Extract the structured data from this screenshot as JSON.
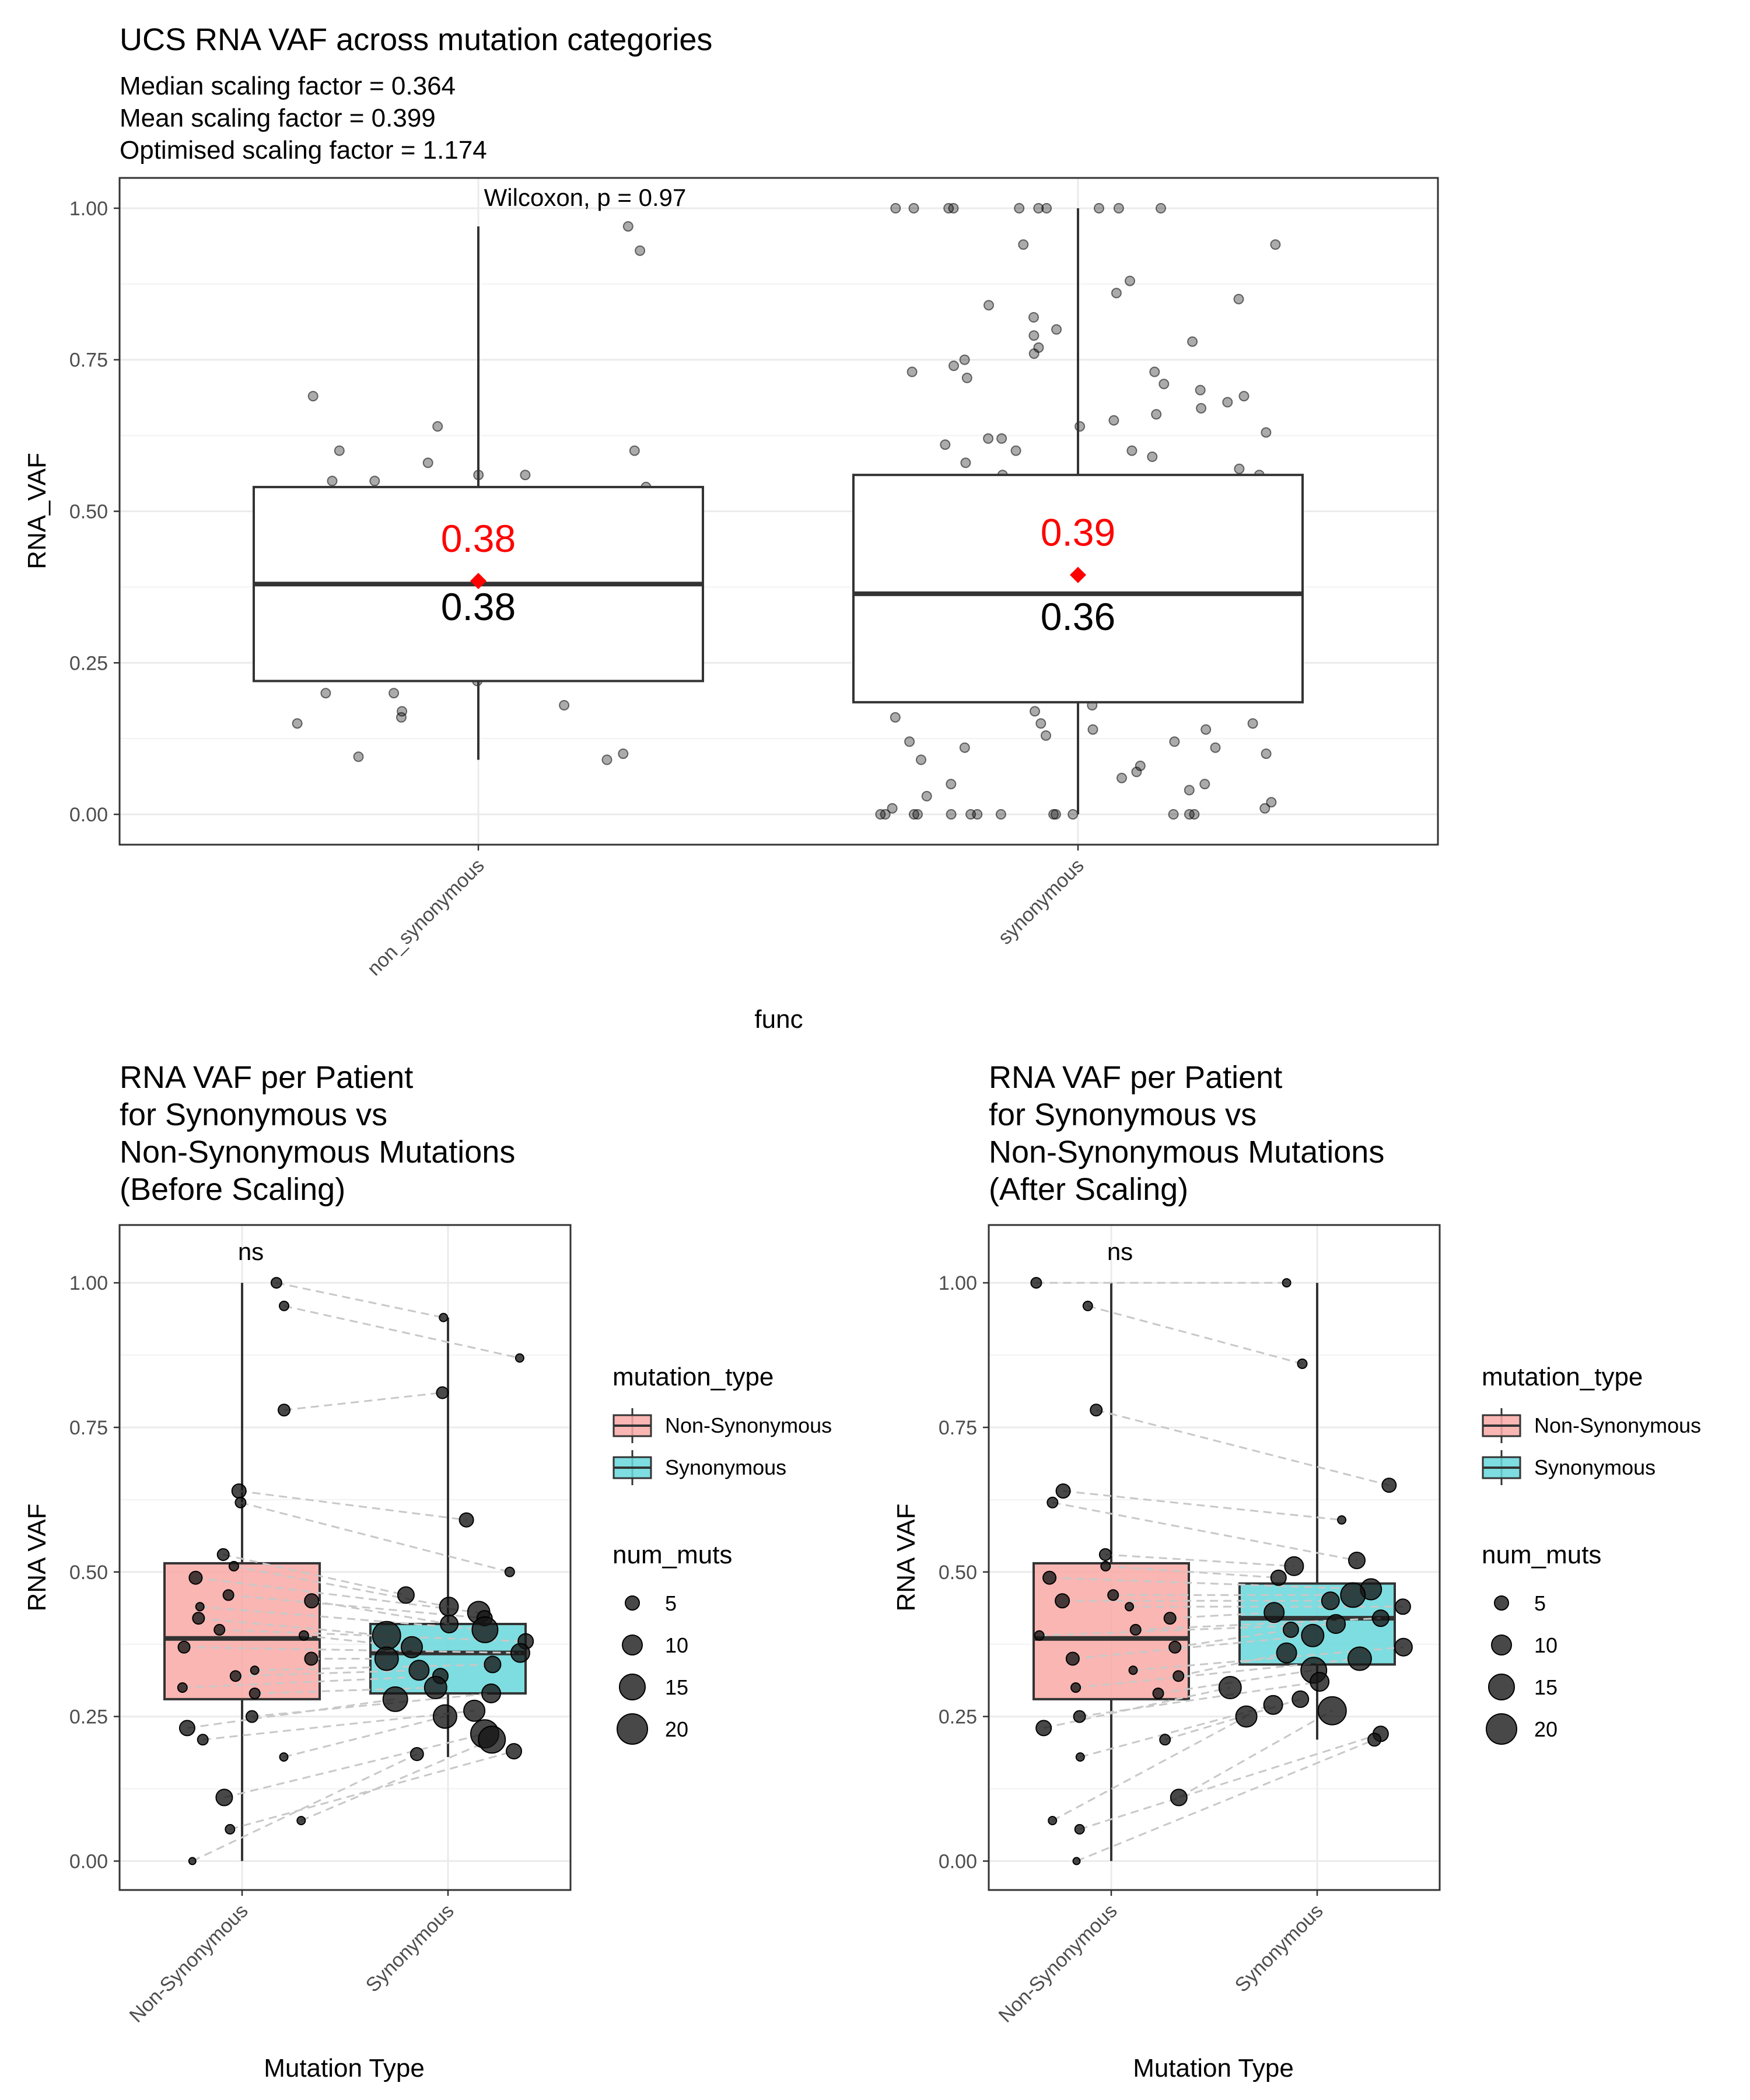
{
  "chart_data": [
    {
      "type": "box",
      "title": "UCS RNA VAF across mutation categories",
      "subtitle_lines": [
        "Median scaling factor = 0.364",
        "Mean scaling factor = 0.399",
        "Optimised scaling factor = 1.174"
      ],
      "xlabel": "func",
      "ylabel": "RNA_VAF",
      "ylim": [
        -0.05,
        1.05
      ],
      "yticks": [
        "0.00",
        "0.25",
        "0.50",
        "0.75",
        "1.00"
      ],
      "categories": [
        "non_synonymous",
        "synonymous"
      ],
      "annotation": "Wilcoxon, p = 0.97",
      "boxes": [
        {
          "category": "non_synonymous",
          "q1": 0.22,
          "median": 0.38,
          "q3": 0.54,
          "whisker_low": 0.09,
          "whisker_high": 0.97,
          "mean": 0.385,
          "mean_label": "0.38",
          "median_label": "0.38"
        },
        {
          "category": "synonymous",
          "q1": 0.185,
          "median": 0.364,
          "q3": 0.56,
          "whisker_low": 0.0,
          "whisker_high": 1.0,
          "mean": 0.395,
          "mean_label": "0.39",
          "median_label": "0.36"
        }
      ],
      "points": [
        {
          "category": "non_synonymous",
          "values": [
            0.97,
            0.93,
            0.69,
            0.64,
            0.6,
            0.6,
            0.58,
            0.56,
            0.56,
            0.55,
            0.55,
            0.54,
            0.42,
            0.25,
            0.22,
            0.2,
            0.2,
            0.18,
            0.17,
            0.16,
            0.15,
            0.1,
            0.095,
            0.09
          ]
        },
        {
          "category": "synonymous",
          "values": [
            1.0,
            1.0,
            1.0,
            1.0,
            1.0,
            1.0,
            1.0,
            1.0,
            1.0,
            1.0,
            0.94,
            0.94,
            0.88,
            0.86,
            0.85,
            0.84,
            0.82,
            0.8,
            0.79,
            0.78,
            0.77,
            0.76,
            0.75,
            0.74,
            0.73,
            0.73,
            0.72,
            0.71,
            0.7,
            0.69,
            0.68,
            0.67,
            0.66,
            0.65,
            0.64,
            0.63,
            0.62,
            0.62,
            0.61,
            0.6,
            0.6,
            0.59,
            0.58,
            0.57,
            0.56,
            0.56,
            0.18,
            0.17,
            0.16,
            0.15,
            0.15,
            0.14,
            0.14,
            0.13,
            0.12,
            0.12,
            0.11,
            0.11,
            0.1,
            0.09,
            0.08,
            0.07,
            0.06,
            0.05,
            0.05,
            0.04,
            0.03,
            0.02,
            0.01,
            0.01,
            0.0,
            0.0,
            0.0,
            0.0,
            0.0,
            0.0,
            0.0,
            0.0,
            0.0,
            0.0,
            0.0,
            0.0,
            0.0,
            0.0
          ]
        }
      ],
      "colors": {
        "mean": "#ff0000",
        "points": "#000000",
        "box_fill": "#ffffff"
      }
    },
    {
      "type": "box",
      "title_lines": [
        "RNA VAF per Patient",
        "for Synonymous vs",
        "Non-Synonymous Mutations",
        "(Before Scaling)"
      ],
      "xlabel": "Mutation Type",
      "ylabel": "RNA VAF",
      "ylim": [
        -0.05,
        1.1
      ],
      "yticks": [
        "0.00",
        "0.25",
        "0.50",
        "0.75",
        "1.00"
      ],
      "categories": [
        "Non-Synonymous",
        "Synonymous"
      ],
      "annotation": "ns",
      "legend": {
        "fill_title": "mutation_type",
        "fill_items": [
          {
            "label": "Non-Synonymous",
            "color": "#F8A9A6"
          },
          {
            "label": "Synonymous",
            "color": "#67D7DA"
          }
        ],
        "size_title": "num_muts",
        "size_items": [
          "5",
          "10",
          "15",
          "20"
        ]
      },
      "boxes": [
        {
          "category": "Non-Synonymous",
          "q1": 0.28,
          "median": 0.385,
          "q3": 0.515,
          "whisker_low": 0.0,
          "whisker_high": 1.0
        },
        {
          "category": "Synonymous",
          "q1": 0.29,
          "median": 0.36,
          "q3": 0.41,
          "whisker_low": 0.18,
          "whisker_high": 0.94
        }
      ],
      "patients": [
        {
          "ns": 1.0,
          "s": 0.94,
          "n_ns": 5,
          "n_s": 3
        },
        {
          "ns": 0.96,
          "s": 0.87,
          "n_ns": 4,
          "n_s": 3
        },
        {
          "ns": 0.78,
          "s": 0.81,
          "n_ns": 6,
          "n_s": 6
        },
        {
          "ns": 0.64,
          "s": 0.59,
          "n_ns": 8,
          "n_s": 8
        },
        {
          "ns": 0.62,
          "s": 0.5,
          "n_ns": 5,
          "n_s": 4
        },
        {
          "ns": 0.53,
          "s": 0.46,
          "n_ns": 6,
          "n_s": 10
        },
        {
          "ns": 0.51,
          "s": 0.44,
          "n_ns": 4,
          "n_s": 12
        },
        {
          "ns": 0.49,
          "s": 0.43,
          "n_ns": 7,
          "n_s": 15
        },
        {
          "ns": 0.46,
          "s": 0.42,
          "n_ns": 5,
          "n_s": 9
        },
        {
          "ns": 0.45,
          "s": 0.41,
          "n_ns": 8,
          "n_s": 11
        },
        {
          "ns": 0.44,
          "s": 0.4,
          "n_ns": 3,
          "n_s": 18
        },
        {
          "ns": 0.42,
          "s": 0.39,
          "n_ns": 6,
          "n_s": 20
        },
        {
          "ns": 0.4,
          "s": 0.38,
          "n_ns": 5,
          "n_s": 9
        },
        {
          "ns": 0.39,
          "s": 0.37,
          "n_ns": 4,
          "n_s": 14
        },
        {
          "ns": 0.37,
          "s": 0.36,
          "n_ns": 6,
          "n_s": 12
        },
        {
          "ns": 0.35,
          "s": 0.35,
          "n_ns": 7,
          "n_s": 16
        },
        {
          "ns": 0.33,
          "s": 0.34,
          "n_ns": 3,
          "n_s": 10
        },
        {
          "ns": 0.32,
          "s": 0.33,
          "n_ns": 5,
          "n_s": 13
        },
        {
          "ns": 0.3,
          "s": 0.32,
          "n_ns": 4,
          "n_s": 9
        },
        {
          "ns": 0.29,
          "s": 0.3,
          "n_ns": 5,
          "n_s": 15
        },
        {
          "ns": 0.25,
          "s": 0.29,
          "n_ns": 6,
          "n_s": 12
        },
        {
          "ns": 0.23,
          "s": 0.28,
          "n_ns": 9,
          "n_s": 17
        },
        {
          "ns": 0.21,
          "s": 0.26,
          "n_ns": 5,
          "n_s": 14
        },
        {
          "ns": 0.18,
          "s": 0.25,
          "n_ns": 3,
          "n_s": 16
        },
        {
          "ns": 0.11,
          "s": 0.22,
          "n_ns": 10,
          "n_s": 20
        },
        {
          "ns": 0.07,
          "s": 0.21,
          "n_ns": 3,
          "n_s": 19
        },
        {
          "ns": 0.055,
          "s": 0.19,
          "n_ns": 4,
          "n_s": 9
        },
        {
          "ns": 0.0,
          "s": 0.185,
          "n_ns": 2,
          "n_s": 7
        }
      ],
      "colors": {
        "ns": "#F8A9A6",
        "s": "#67D7DA",
        "points": "#1a1a1a",
        "lines": "#c8c8c8"
      }
    },
    {
      "type": "box",
      "title_lines": [
        "RNA VAF per Patient",
        "for Synonymous vs",
        "Non-Synonymous Mutations",
        "(After Scaling)"
      ],
      "xlabel": "Mutation Type",
      "ylabel": "RNA VAF",
      "ylim": [
        -0.05,
        1.1
      ],
      "yticks": [
        "0.00",
        "0.25",
        "0.50",
        "0.75",
        "1.00"
      ],
      "categories": [
        "Non-Synonymous",
        "Synonymous"
      ],
      "annotation": "ns",
      "legend": {
        "fill_title": "mutation_type",
        "fill_items": [
          {
            "label": "Non-Synonymous",
            "color": "#F8A9A6"
          },
          {
            "label": "Synonymous",
            "color": "#67D7DA"
          }
        ],
        "size_title": "num_muts",
        "size_items": [
          "5",
          "10",
          "15",
          "20"
        ]
      },
      "boxes": [
        {
          "category": "Non-Synonymous",
          "q1": 0.28,
          "median": 0.385,
          "q3": 0.515,
          "whisker_low": 0.0,
          "whisker_high": 1.0
        },
        {
          "category": "Synonymous",
          "q1": 0.34,
          "median": 0.42,
          "q3": 0.48,
          "whisker_low": 0.21,
          "whisker_high": 1.0
        }
      ],
      "patients": [
        {
          "ns": 1.0,
          "s": 1.0,
          "n_ns": 5,
          "n_s": 3
        },
        {
          "ns": 0.96,
          "s": 0.86,
          "n_ns": 4,
          "n_s": 4
        },
        {
          "ns": 0.78,
          "s": 0.65,
          "n_ns": 6,
          "n_s": 8
        },
        {
          "ns": 0.64,
          "s": 0.59,
          "n_ns": 8,
          "n_s": 3
        },
        {
          "ns": 0.62,
          "s": 0.52,
          "n_ns": 5,
          "n_s": 10
        },
        {
          "ns": 0.53,
          "s": 0.51,
          "n_ns": 6,
          "n_s": 12
        },
        {
          "ns": 0.51,
          "s": 0.49,
          "n_ns": 4,
          "n_s": 9
        },
        {
          "ns": 0.49,
          "s": 0.47,
          "n_ns": 7,
          "n_s": 14
        },
        {
          "ns": 0.46,
          "s": 0.46,
          "n_ns": 5,
          "n_s": 17
        },
        {
          "ns": 0.45,
          "s": 0.45,
          "n_ns": 8,
          "n_s": 11
        },
        {
          "ns": 0.44,
          "s": 0.44,
          "n_ns": 3,
          "n_s": 9
        },
        {
          "ns": 0.42,
          "s": 0.43,
          "n_ns": 6,
          "n_s": 13
        },
        {
          "ns": 0.4,
          "s": 0.42,
          "n_ns": 5,
          "n_s": 10
        },
        {
          "ns": 0.39,
          "s": 0.41,
          "n_ns": 4,
          "n_s": 12
        },
        {
          "ns": 0.37,
          "s": 0.4,
          "n_ns": 6,
          "n_s": 9
        },
        {
          "ns": 0.35,
          "s": 0.39,
          "n_ns": 7,
          "n_s": 15
        },
        {
          "ns": 0.33,
          "s": 0.37,
          "n_ns": 3,
          "n_s": 11
        },
        {
          "ns": 0.32,
          "s": 0.36,
          "n_ns": 5,
          "n_s": 13
        },
        {
          "ns": 0.3,
          "s": 0.35,
          "n_ns": 4,
          "n_s": 16
        },
        {
          "ns": 0.29,
          "s": 0.33,
          "n_ns": 5,
          "n_s": 18
        },
        {
          "ns": 0.25,
          "s": 0.31,
          "n_ns": 6,
          "n_s": 12
        },
        {
          "ns": 0.23,
          "s": 0.3,
          "n_ns": 9,
          "n_s": 15
        },
        {
          "ns": 0.21,
          "s": 0.28,
          "n_ns": 5,
          "n_s": 10
        },
        {
          "ns": 0.18,
          "s": 0.27,
          "n_ns": 3,
          "n_s": 12
        },
        {
          "ns": 0.11,
          "s": 0.26,
          "n_ns": 10,
          "n_s": 20
        },
        {
          "ns": 0.07,
          "s": 0.25,
          "n_ns": 3,
          "n_s": 14
        },
        {
          "ns": 0.055,
          "s": 0.22,
          "n_ns": 4,
          "n_s": 9
        },
        {
          "ns": 0.0,
          "s": 0.21,
          "n_ns": 2,
          "n_s": 7
        }
      ],
      "colors": {
        "ns": "#F8A9A6",
        "s": "#67D7DA",
        "points": "#1a1a1a",
        "lines": "#c8c8c8"
      }
    }
  ]
}
